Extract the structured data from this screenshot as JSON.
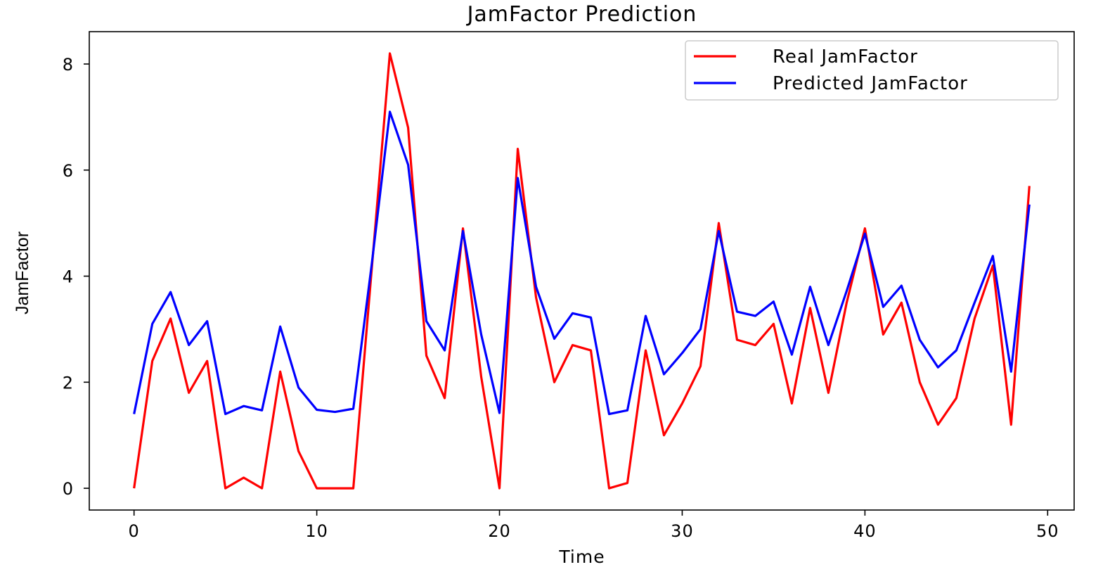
{
  "chart_data": {
    "type": "line",
    "title": "JamFactor Prediction",
    "xlabel": "Time",
    "ylabel": "JamFactor",
    "xlim": [
      -2.45,
      51.45
    ],
    "ylim": [
      -0.41,
      8.61
    ],
    "xticks": [
      0,
      10,
      20,
      30,
      40,
      50
    ],
    "yticks": [
      0,
      2,
      4,
      6,
      8
    ],
    "grid": false,
    "legend_position": "top-right",
    "x": [
      0,
      1,
      2,
      3,
      4,
      5,
      6,
      7,
      8,
      9,
      10,
      11,
      12,
      13,
      14,
      15,
      16,
      17,
      18,
      19,
      20,
      21,
      22,
      23,
      24,
      25,
      26,
      27,
      28,
      29,
      30,
      31,
      32,
      33,
      34,
      35,
      36,
      37,
      38,
      39,
      40,
      41,
      42,
      43,
      44,
      45,
      46,
      47,
      48,
      49
    ],
    "series": [
      {
        "name": "Real JamFactor",
        "color": "#ff0000",
        "values": [
          0,
          2.4,
          3.2,
          1.8,
          2.4,
          0,
          0.2,
          0,
          2.2,
          0.7,
          0,
          0,
          0,
          4.1,
          8.2,
          6.8,
          2.5,
          1.7,
          4.9,
          2.1,
          0,
          6.4,
          3.6,
          2.0,
          2.7,
          2.6,
          0,
          0.1,
          2.6,
          1.0,
          1.6,
          2.3,
          5.0,
          2.8,
          2.7,
          3.1,
          1.6,
          3.4,
          1.8,
          3.5,
          4.9,
          2.9,
          3.5,
          2.0,
          1.2,
          1.7,
          3.2,
          4.2,
          1.2,
          5.7
        ]
      },
      {
        "name": "Predicted JamFactor",
        "color": "#0000ff",
        "values": [
          1.4,
          3.1,
          3.7,
          2.7,
          3.15,
          1.4,
          1.55,
          1.47,
          3.05,
          1.9,
          1.48,
          1.44,
          1.5,
          4.2,
          7.1,
          6.1,
          3.15,
          2.6,
          4.85,
          2.9,
          1.42,
          5.85,
          3.8,
          2.82,
          3.3,
          3.22,
          1.4,
          1.47,
          3.25,
          2.15,
          2.55,
          3.0,
          4.85,
          3.33,
          3.25,
          3.52,
          2.52,
          3.8,
          2.7,
          3.72,
          4.8,
          3.42,
          3.82,
          2.8,
          2.28,
          2.6,
          3.5,
          4.38,
          2.2,
          5.35
        ]
      }
    ]
  }
}
